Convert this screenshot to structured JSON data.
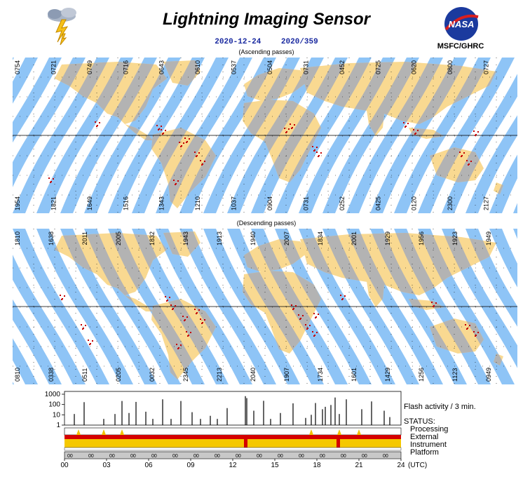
{
  "header": {
    "title": "Lightning Imaging Sensor",
    "date": "2020-12-24",
    "doy": "2020/359",
    "logo_text": "MSFC/GHRC",
    "nasa_text": "NASA"
  },
  "colors": {
    "ocean_swath": "#8ec4f6",
    "land": "#f9d991",
    "land_swath": "#b3b3b3",
    "flash": "#c40000",
    "processing": "#f2c200",
    "external": "#d40000",
    "instrument": "#f5c800"
  },
  "ascending": {
    "label": "(Ascending passes)",
    "top_times": [
      "0754",
      "0721",
      "0749",
      "0716",
      "0643",
      "0610",
      "0537",
      "0504",
      "0731",
      "0452",
      "0725",
      "0620",
      "0800",
      "0727"
    ],
    "bottom_times": [
      "1954",
      "1821",
      "1649",
      "1516",
      "1343",
      "1210",
      "1037",
      "0904",
      "0731",
      "0252",
      "0425",
      "0120",
      "2300",
      "2127"
    ]
  },
  "descending": {
    "label": "(Descending passes)",
    "top_times": [
      "1810",
      "1638",
      "2011",
      "2005",
      "1832",
      "1943",
      "1913",
      "1940",
      "2007",
      "1834",
      "2001",
      "1929",
      "1956",
      "1923",
      "1949"
    ],
    "bottom_times": [
      "0810",
      "0338",
      "0511",
      "0205",
      "0032",
      "2345",
      "2213",
      "2040",
      "1907",
      "1734",
      "1601",
      "1429",
      "1256",
      "1123",
      "0949"
    ]
  },
  "chart_data": {
    "type": "bar",
    "title": "Flash activity / 3 min.",
    "yscale": "log",
    "yticks": [
      "1000",
      "100",
      "10",
      "1"
    ],
    "ylim": [
      1,
      1000
    ],
    "xlabel": "(UTC)",
    "xlim": [
      0,
      24
    ],
    "xticks": [
      "00",
      "03",
      "06",
      "09",
      "12",
      "15",
      "18",
      "21",
      "24"
    ],
    "x": [
      0.7,
      1.4,
      2.8,
      3.6,
      4.1,
      4.6,
      5.1,
      5.8,
      6.3,
      7.0,
      7.6,
      8.3,
      9.1,
      9.7,
      10.4,
      10.9,
      11.6,
      12.9,
      13.0,
      13.5,
      14.2,
      14.7,
      15.4,
      16.3,
      17.2,
      17.6,
      17.9,
      18.4,
      18.6,
      19.0,
      19.3,
      19.6,
      20.1,
      21.2,
      21.9,
      22.8,
      23.2
    ],
    "values": [
      12,
      170,
      4,
      12,
      220,
      15,
      180,
      20,
      4,
      320,
      4,
      220,
      18,
      4,
      8,
      4,
      45,
      650,
      420,
      25,
      230,
      4,
      15,
      130,
      5,
      10,
      140,
      35,
      60,
      90,
      480,
      12,
      320,
      35,
      200,
      25,
      6
    ],
    "status_title": "STATUS:",
    "status_rows": [
      "Processing",
      "External",
      "Instrument",
      "Platform"
    ],
    "platform_marks": [
      "00",
      "00",
      "00",
      "00",
      "00",
      "00",
      "00",
      "00",
      "00",
      "00",
      "00",
      "00",
      "00",
      "00",
      "00",
      "00"
    ]
  }
}
